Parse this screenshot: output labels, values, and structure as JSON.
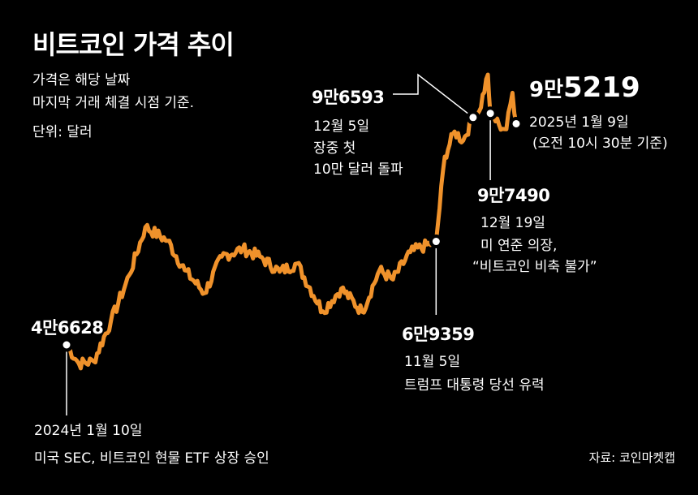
{
  "title": "비트코인 가격 추이",
  "description": [
    "가격은 해당 날짜",
    "마지막 거래 체결 시점 기준."
  ],
  "unit": "단위: 달러",
  "source": "자료: 코인마켓캡",
  "annotations": [
    {
      "value": "4만6628",
      "date": "2024년 1월 10일",
      "note": [
        "미국 SEC, 비트코인 현물 ETF 상장 승인"
      ]
    },
    {
      "value": "6만9359",
      "date": "11월 5일",
      "note": [
        "트럼프 대통령 당선 유력"
      ]
    },
    {
      "value": "9만6593",
      "date": "12월 5일",
      "note": [
        "장중 첫",
        "10만 달러 돌파"
      ]
    },
    {
      "value": "9만7490",
      "date": "12월 19일",
      "note": [
        "미 연준 의장,",
        "“비트코인 비축 불가”"
      ]
    },
    {
      "value_lead": "9만",
      "value_main": "5219",
      "date": "2025년 1월 9일",
      "note": [
        "(오전 10시 30분 기준)"
      ]
    }
  ],
  "colors": {
    "line": "#F0922B",
    "background": "#000000",
    "text": "#FFFFFF"
  },
  "chart_data": {
    "type": "line",
    "series": [
      {
        "x": [
          "2024-01-10",
          "2024-01-20",
          "2024-02-01",
          "2024-02-15",
          "2024-03-01",
          "2024-03-14",
          "2024-04-01",
          "2024-04-15",
          "2024-05-01",
          "2024-05-15",
          "2024-06-01",
          "2024-06-15",
          "2024-07-01",
          "2024-07-15",
          "2024-08-05",
          "2024-08-20",
          "2024-09-06",
          "2024-09-20",
          "2024-10-01",
          "2024-10-15",
          "2024-11-05",
          "2024-11-12",
          "2024-11-20",
          "2024-11-27",
          "2024-12-05",
          "2024-12-10",
          "2024-12-17",
          "2024-12-19",
          "2024-12-26",
          "2025-01-01",
          "2025-01-06",
          "2025-01-09"
        ],
        "values": [
          46628,
          42500,
          43000,
          51800,
          62000,
          72500,
          69500,
          63000,
          58000,
          66000,
          67700,
          66000,
          62700,
          64500,
          54000,
          59000,
          53900,
          63000,
          61000,
          67000,
          69359,
          88000,
          93500,
          91500,
          96593,
          98000,
          106000,
          97490,
          95000,
          94000,
          102000,
          95219
        ]
      }
    ],
    "markers": [
      {
        "x": "2024-01-10",
        "y": 46628
      },
      {
        "x": "2024-11-05",
        "y": 69359
      },
      {
        "x": "2024-12-05",
        "y": 96593
      },
      {
        "x": "2024-12-19",
        "y": 97490
      },
      {
        "x": "2025-01-09",
        "y": 95219
      }
    ]
  }
}
